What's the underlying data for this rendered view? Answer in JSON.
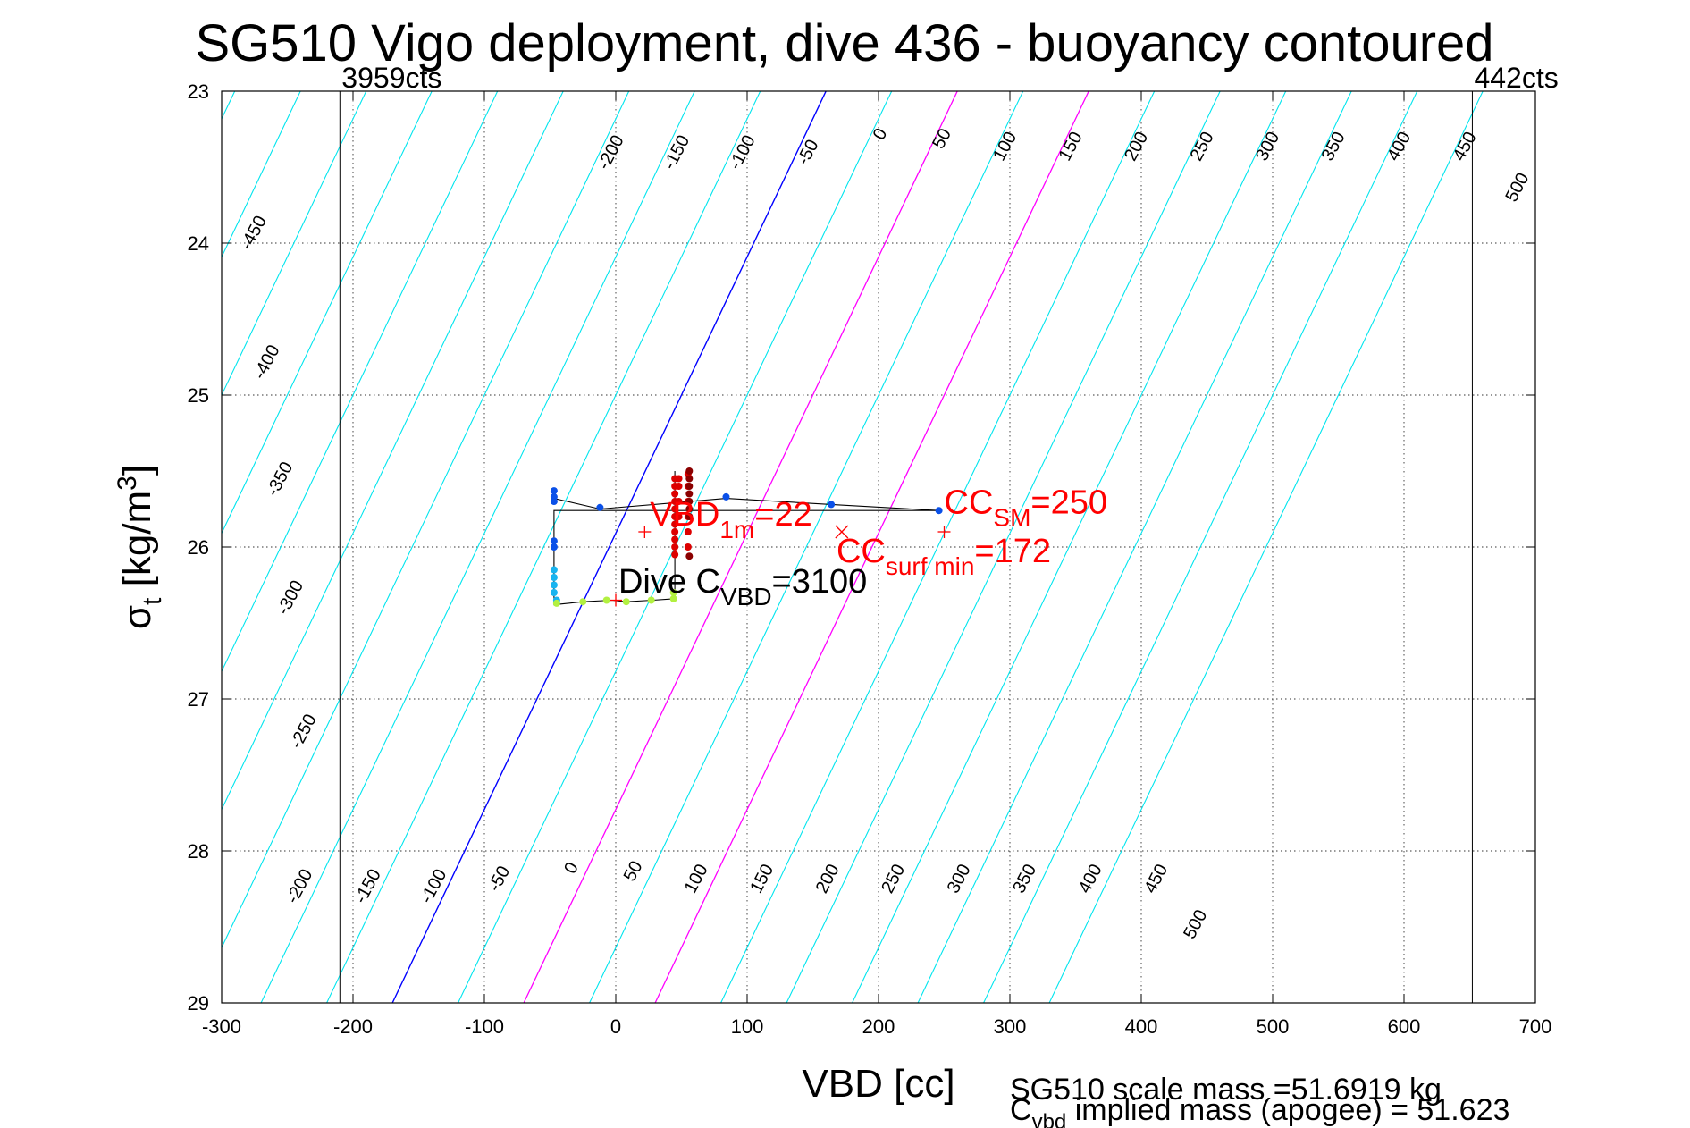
{
  "chart_data": {
    "type": "line",
    "title": "SG510 Vigo deployment, dive 436 - buoyancy contoured",
    "xlabel": "VBD [cc]",
    "ylabel_main": "σ",
    "ylabel_sub": "t",
    "ylabel_rest": " [kg/m",
    "ylabel_sup": "3",
    "ylabel_end": "]",
    "xlim": [
      -300,
      700
    ],
    "ylim": [
      23,
      29
    ],
    "y_reversed": true,
    "grid": true,
    "x_ticks": [
      -300,
      -200,
      -100,
      0,
      100,
      200,
      300,
      400,
      500,
      600,
      700
    ],
    "y_ticks": [
      23,
      24,
      25,
      26,
      27,
      28,
      29
    ],
    "contour_slope_cc_per_sigma": 55,
    "contours": {
      "cyan_color": "#00e5ee",
      "zero_color": "#0000ff",
      "magenta_color": "#ff00ff",
      "offsets": [
        -590,
        -540,
        -490,
        -440,
        -390,
        -340,
        -290,
        -240,
        -190,
        -140,
        -90,
        -40,
        10,
        60,
        110,
        160,
        210,
        260,
        310,
        360,
        410,
        460,
        510,
        560,
        610,
        660
      ],
      "blue_offset": 160,
      "magenta_offsets": [
        260,
        360
      ]
    },
    "top_contour_labels": [
      {
        "text": "-450",
        "x": -272,
        "y": 23.95
      },
      {
        "text": "-400",
        "x": -262,
        "y": 24.8
      },
      {
        "text": "-350",
        "x": -252,
        "y": 25.57
      },
      {
        "text": "-300",
        "x": -244,
        "y": 26.35
      },
      {
        "text": "-250",
        "x": -234,
        "y": 27.23
      },
      {
        "text": "-200",
        "x": 0,
        "y": 23.42
      },
      {
        "text": "-150",
        "x": 50,
        "y": 23.42
      },
      {
        "text": "-100",
        "x": 100,
        "y": 23.42
      },
      {
        "text": "-50",
        "x": 150,
        "y": 23.42
      },
      {
        "text": "0",
        "x": 205,
        "y": 23.3
      },
      {
        "text": "50",
        "x": 252,
        "y": 23.33
      },
      {
        "text": "100",
        "x": 300,
        "y": 23.38
      },
      {
        "text": "150",
        "x": 350,
        "y": 23.38
      },
      {
        "text": "200",
        "x": 400,
        "y": 23.38
      },
      {
        "text": "250",
        "x": 450,
        "y": 23.38
      },
      {
        "text": "300",
        "x": 500,
        "y": 23.38
      },
      {
        "text": "350",
        "x": 550,
        "y": 23.38
      },
      {
        "text": "400",
        "x": 600,
        "y": 23.38
      },
      {
        "text": "450",
        "x": 650,
        "y": 23.38
      },
      {
        "text": "500",
        "x": 690,
        "y": 23.65
      }
    ],
    "bottom_contour_labels": [
      {
        "text": "-200",
        "x": -237,
        "y": 28.25
      },
      {
        "text": "-150",
        "x": -185,
        "y": 28.25
      },
      {
        "text": "-100",
        "x": -135,
        "y": 28.25
      },
      {
        "text": "-50",
        "x": -85,
        "y": 28.2
      },
      {
        "text": "0",
        "x": -30,
        "y": 28.13
      },
      {
        "text": "50",
        "x": 17,
        "y": 28.15
      },
      {
        "text": "100",
        "x": 65,
        "y": 28.2
      },
      {
        "text": "150",
        "x": 115,
        "y": 28.2
      },
      {
        "text": "200",
        "x": 165,
        "y": 28.2
      },
      {
        "text": "250",
        "x": 215,
        "y": 28.2
      },
      {
        "text": "300",
        "x": 265,
        "y": 28.2
      },
      {
        "text": "350",
        "x": 315,
        "y": 28.2
      },
      {
        "text": "400",
        "x": 365,
        "y": 28.2
      },
      {
        "text": "450",
        "x": 415,
        "y": 28.2
      },
      {
        "text": "500",
        "x": 445,
        "y": 28.5
      }
    ],
    "vertical_lines": [
      {
        "x": -210,
        "label": "3959cts",
        "label_x": -210
      },
      {
        "x": 652,
        "label": "442cts",
        "label_x": 652
      }
    ],
    "trajectory": [
      [
        -47,
        25.65
      ],
      [
        -47,
        25.68
      ],
      [
        -12,
        25.75
      ],
      [
        84,
        25.68
      ],
      [
        164,
        25.72
      ],
      [
        246,
        25.76
      ],
      [
        246,
        25.76
      ],
      [
        -47,
        25.76
      ],
      [
        -47,
        26.38
      ],
      [
        -25,
        26.36
      ],
      [
        -3,
        26.35
      ],
      [
        8,
        26.36
      ],
      [
        28,
        26.35
      ],
      [
        45,
        26.34
      ],
      [
        45,
        25.5
      ]
    ],
    "blue_dots": [
      [
        -47,
        25.63
      ],
      [
        -47,
        25.67
      ],
      [
        -47,
        25.7
      ],
      [
        -47,
        25.96
      ],
      [
        -47,
        26.0
      ],
      [
        -12,
        25.74
      ],
      [
        84,
        25.67
      ],
      [
        164,
        25.72
      ],
      [
        246,
        25.76
      ]
    ],
    "cyan_dots": [
      [
        -47,
        26.15
      ],
      [
        -47,
        26.2
      ],
      [
        -47,
        26.25
      ],
      [
        -47,
        26.3
      ],
      [
        -45,
        26.35
      ]
    ],
    "green_dots": [
      [
        -45,
        26.37
      ],
      [
        -25,
        26.36
      ],
      [
        -7,
        26.35
      ],
      [
        8,
        26.36
      ],
      [
        27,
        26.35
      ],
      [
        44,
        26.34
      ],
      [
        44,
        26.3
      ]
    ],
    "red_dots": [
      [
        45,
        25.55
      ],
      [
        45,
        25.6
      ],
      [
        45,
        25.65
      ],
      [
        45,
        25.7
      ],
      [
        45,
        25.75
      ],
      [
        45,
        25.8
      ],
      [
        45,
        25.85
      ],
      [
        45,
        25.9
      ],
      [
        45,
        25.95
      ],
      [
        45,
        26.0
      ],
      [
        45,
        26.05
      ],
      [
        48,
        25.55
      ],
      [
        48,
        25.6
      ],
      [
        48,
        25.7
      ],
      [
        48,
        25.8
      ],
      [
        55,
        25.52
      ],
      [
        55,
        25.6
      ],
      [
        55,
        25.7
      ],
      [
        55,
        25.8
      ],
      [
        55,
        25.9
      ],
      [
        55,
        26.0
      ]
    ],
    "darkred_dots": [
      [
        56,
        25.5
      ],
      [
        56,
        25.55
      ],
      [
        56,
        25.6
      ],
      [
        56,
        25.65
      ],
      [
        56,
        25.7
      ],
      [
        56,
        25.75
      ],
      [
        56,
        25.8
      ],
      [
        56,
        26.06
      ]
    ],
    "red_markers": [
      {
        "type": "plus",
        "x": 22,
        "y": 25.9
      },
      {
        "type": "plus",
        "x": 250,
        "y": 25.9
      },
      {
        "type": "cross",
        "x": 172,
        "y": 25.9
      },
      {
        "type": "plus",
        "x": 0,
        "y": 26.35
      }
    ],
    "annotations": [
      {
        "id": "vbd1m",
        "main": "VBD",
        "sub": "1m",
        "rest": "=22",
        "x": 26,
        "y": 25.86,
        "color": "#ff0000"
      },
      {
        "id": "ccsm",
        "main": "CC",
        "sub": "SM",
        "rest": "=250",
        "x": 250,
        "y": 25.78,
        "color": "#ff0000"
      },
      {
        "id": "ccsurf",
        "main": "CC",
        "sub": "surf min",
        "rest": "=172",
        "x": 168,
        "y": 26.1,
        "color": "#ff0000"
      },
      {
        "id": "divec",
        "main": "Dive C",
        "sub": "VBD",
        "rest": "=3100",
        "x": 2,
        "y": 26.3,
        "color": "#000000"
      }
    ],
    "footer_line1": "SG510 scale mass =51.6919 kg",
    "footer_line2_main": "C",
    "footer_line2_sub": "vbd",
    "footer_line2_rest": " implied mass (apogee) = 51.623"
  }
}
